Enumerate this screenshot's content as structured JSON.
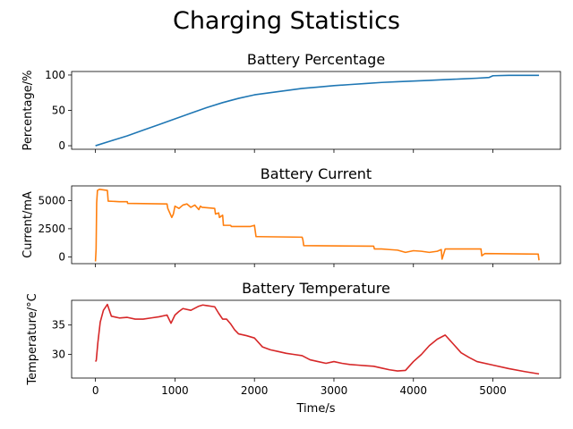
{
  "figure": {
    "title": "Charging Statistics"
  },
  "chart_data": [
    {
      "type": "line",
      "title": "Battery Percentage",
      "xlabel": "",
      "ylabel": "Percentage/%",
      "xlim": [
        -300,
        5850
      ],
      "ylim": [
        -5,
        105
      ],
      "xticks": [
        0,
        1000,
        2000,
        3000,
        4000,
        5000
      ],
      "yticks": [
        0,
        50,
        100
      ],
      "color": "#1f77b4",
      "x": [
        0,
        200,
        400,
        600,
        800,
        1000,
        1200,
        1400,
        1600,
        1800,
        2000,
        2200,
        2400,
        2600,
        2800,
        3000,
        3200,
        3400,
        3600,
        3800,
        4000,
        4200,
        4400,
        4600,
        4800,
        4950,
        5000,
        5200,
        5400,
        5580
      ],
      "y": [
        0,
        7,
        14,
        22,
        30,
        38,
        46,
        54,
        61,
        67,
        72,
        75,
        78,
        81,
        83,
        85,
        86.5,
        88,
        89.5,
        90.5,
        91.5,
        92.5,
        93.5,
        94.5,
        95.5,
        96.5,
        99,
        99.5,
        99.5,
        99.5
      ]
    },
    {
      "type": "line",
      "title": "Battery Current",
      "xlabel": "",
      "ylabel": "Current/mA",
      "xlim": [
        -300,
        5850
      ],
      "ylim": [
        -600,
        6300
      ],
      "xticks": [
        0,
        1000,
        2000,
        3000,
        4000,
        5000
      ],
      "yticks": [
        0,
        2500,
        5000
      ],
      "color": "#ff7f0e",
      "x": [
        0,
        8,
        15,
        25,
        50,
        150,
        160,
        300,
        400,
        405,
        900,
        910,
        960,
        980,
        1000,
        1050,
        1100,
        1150,
        1200,
        1250,
        1300,
        1320,
        1340,
        1500,
        1510,
        1550,
        1560,
        1600,
        1610,
        1700,
        1710,
        1800,
        1950,
        2000,
        2020,
        2040,
        2600,
        2610,
        2620,
        3500,
        3510,
        3600,
        3700,
        3800,
        3900,
        4000,
        4100,
        4200,
        4300,
        4350,
        4360,
        4400,
        4850,
        4860,
        4900,
        5570,
        5580
      ],
      "y": [
        -400,
        700,
        4800,
        5900,
        6000,
        5900,
        4950,
        4900,
        4900,
        4750,
        4700,
        4300,
        3500,
        3800,
        4500,
        4300,
        4600,
        4700,
        4400,
        4600,
        4200,
        4500,
        4400,
        4300,
        3800,
        3900,
        3500,
        3700,
        2800,
        2800,
        2700,
        2700,
        2700,
        2800,
        1800,
        1800,
        1750,
        1500,
        1000,
        950,
        700,
        700,
        650,
        600,
        400,
        550,
        500,
        400,
        500,
        650,
        -200,
        700,
        700,
        100,
        300,
        250,
        -300
      ]
    },
    {
      "type": "line",
      "title": "Battery Temperature",
      "xlabel": "Time/s",
      "ylabel": "Temperature/$^\\circ$C",
      "xlim": [
        -300,
        5850
      ],
      "ylim": [
        26,
        39.2
      ],
      "xticks": [
        0,
        1000,
        2000,
        3000,
        4000,
        5000
      ],
      "yticks": [
        30,
        35
      ],
      "color": "#d62728",
      "x": [
        0,
        10,
        30,
        60,
        100,
        150,
        200,
        300,
        400,
        500,
        600,
        700,
        800,
        900,
        950,
        1000,
        1050,
        1100,
        1200,
        1300,
        1350,
        1400,
        1500,
        1550,
        1600,
        1650,
        1700,
        1750,
        1800,
        1900,
        2000,
        2100,
        2200,
        2300,
        2400,
        2500,
        2600,
        2700,
        2800,
        2900,
        3000,
        3100,
        3200,
        3300,
        3400,
        3500,
        3600,
        3700,
        3800,
        3900,
        4000,
        4100,
        4200,
        4300,
        4400,
        4500,
        4600,
        4700,
        4800,
        5000,
        5200,
        5400,
        5580
      ],
      "y": [
        28.8,
        29,
        32,
        35.5,
        37.5,
        38.5,
        36.5,
        36.2,
        36.3,
        36,
        36,
        36.2,
        36.4,
        36.7,
        35.3,
        36.7,
        37.3,
        37.8,
        37.5,
        38.2,
        38.4,
        38.3,
        38.1,
        37,
        36,
        36,
        35.2,
        34.2,
        33.5,
        33.2,
        32.8,
        31.3,
        30.8,
        30.5,
        30.2,
        30,
        29.8,
        29.1,
        28.8,
        28.5,
        28.8,
        28.5,
        28.3,
        28.2,
        28.1,
        28,
        27.7,
        27.4,
        27.2,
        27.3,
        28.8,
        30,
        31.5,
        32.6,
        33.3,
        31.8,
        30.3,
        29.5,
        28.8,
        28.2,
        27.6,
        27.1,
        26.7
      ]
    }
  ]
}
